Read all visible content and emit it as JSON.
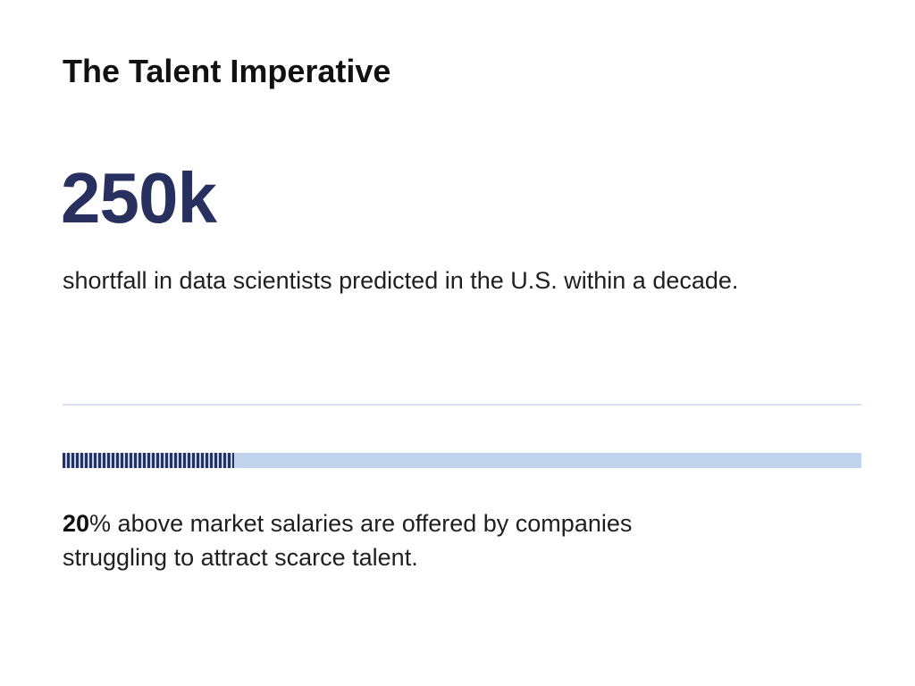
{
  "slide": {
    "title": "The Talent Imperative",
    "stat1": {
      "value": "250k",
      "caption": "shortfall in data scientists predicted in the U.S. within a decade."
    },
    "stat2": {
      "value": "20",
      "text": "% above market salaries are offered by companies struggling to attract scarce talent.",
      "bar_fill_fraction": 0.215
    },
    "colors": {
      "accent": "#27305e",
      "bar_track": "#c2d3ee",
      "divider": "#d6e2f3"
    }
  }
}
